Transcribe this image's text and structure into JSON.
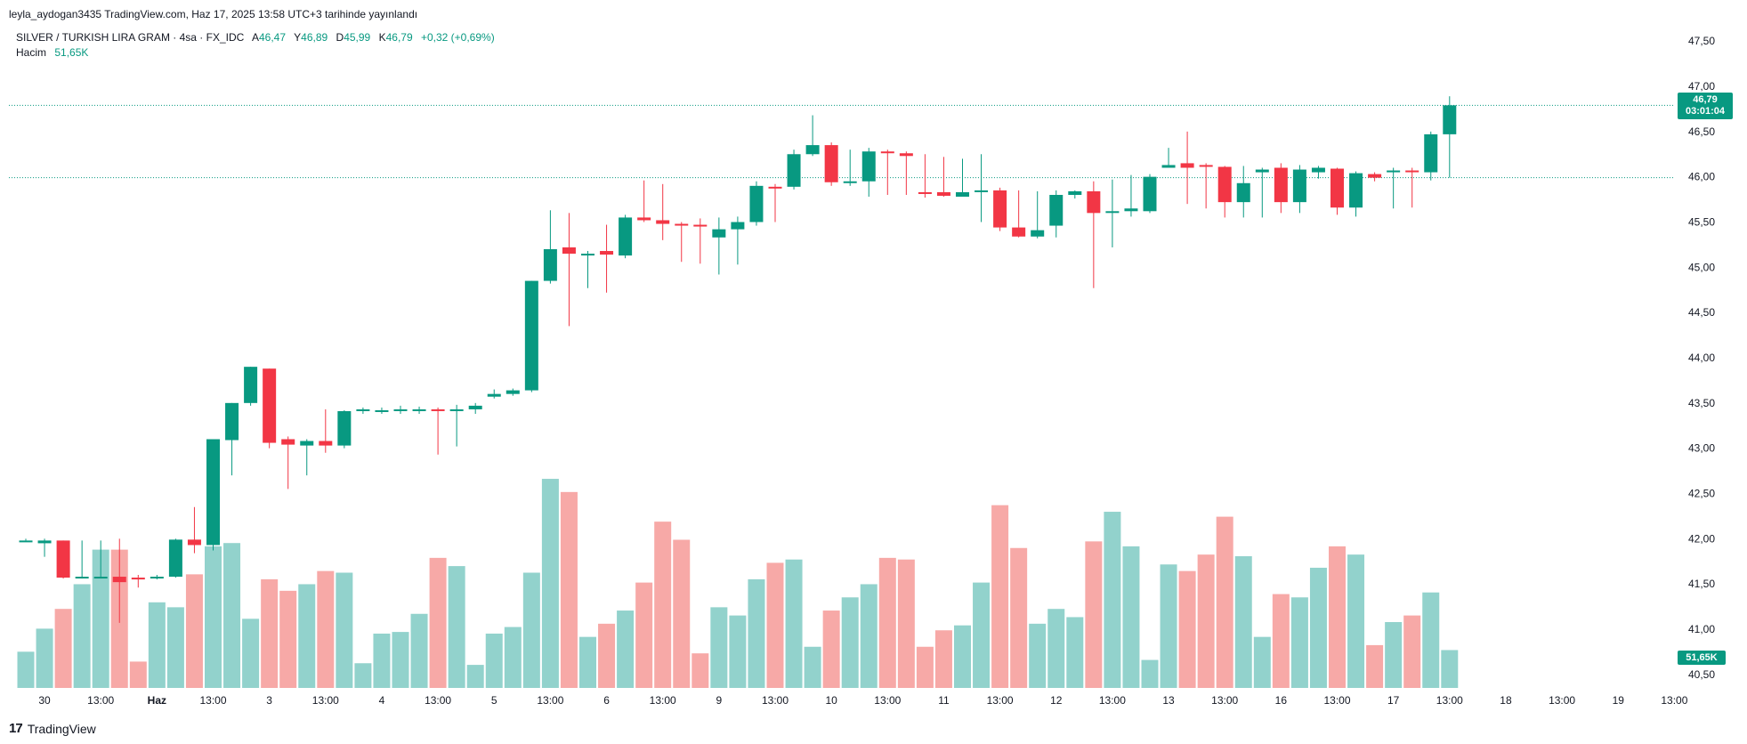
{
  "header": {
    "text": "leyla_aydogan3435 TradingView.com, Haz 17, 2025 13:58 UTC+3 tarihinde yayınlandı"
  },
  "legend": {
    "symbol": "SILVER / TURKISH LIRA GRAM · 4sa · FX_IDC",
    "open_label": "A",
    "open_value": "46,47",
    "high_label": "Y",
    "high_value": "46,89",
    "low_label": "D",
    "low_value": "45,99",
    "close_label": "K",
    "close_value": "46,79",
    "change": "+0,32 (+0,69%)",
    "volume_label": "Hacim",
    "volume_value": "51,65K"
  },
  "price_badge": {
    "price": "46,79",
    "countdown": "03:01:04"
  },
  "volume_badge": "51,65K",
  "footer": {
    "logo": "17",
    "brand": "TradingView"
  },
  "colors": {
    "up": "#089981",
    "down": "#F23645",
    "vol_up": "#92D2CC",
    "vol_down": "#F7A9A7"
  },
  "chart_data": {
    "type": "candlestick",
    "title": "SILVER / TURKISH LIRA GRAM · 4sa · FX_IDC",
    "y_axis": {
      "side": "right",
      "ylim": [
        40.4,
        47.6
      ],
      "ticks": [
        [
          "47,50",
          47.5
        ],
        [
          "47,00",
          47.0
        ],
        [
          "46,50",
          46.5
        ],
        [
          "46,00",
          46.0
        ],
        [
          "45,50",
          45.5
        ],
        [
          "45,00",
          45.0
        ],
        [
          "44,50",
          44.5
        ],
        [
          "44,00",
          44.0
        ],
        [
          "43,50",
          43.5
        ],
        [
          "43,00",
          43.0
        ],
        [
          "42,50",
          42.5
        ],
        [
          "42,00",
          42.0
        ],
        [
          "41,50",
          41.5
        ],
        [
          "41,00",
          41.0
        ],
        [
          "40,50",
          40.5
        ]
      ]
    },
    "x_ticks": [
      {
        "label": "30",
        "i": 1,
        "bold": false
      },
      {
        "label": "13:00",
        "i": 4,
        "bold": false
      },
      {
        "label": "Haz",
        "i": 7,
        "bold": true
      },
      {
        "label": "13:00",
        "i": 10,
        "bold": false
      },
      {
        "label": "3",
        "i": 13,
        "bold": false
      },
      {
        "label": "13:00",
        "i": 16,
        "bold": false
      },
      {
        "label": "4",
        "i": 19,
        "bold": false
      },
      {
        "label": "13:00",
        "i": 22,
        "bold": false
      },
      {
        "label": "5",
        "i": 25,
        "bold": false
      },
      {
        "label": "13:00",
        "i": 28,
        "bold": false
      },
      {
        "label": "6",
        "i": 31,
        "bold": false
      },
      {
        "label": "13:00",
        "i": 34,
        "bold": false
      },
      {
        "label": "9",
        "i": 37,
        "bold": false
      },
      {
        "label": "13:00",
        "i": 40,
        "bold": false
      },
      {
        "label": "10",
        "i": 43,
        "bold": false
      },
      {
        "label": "13:00",
        "i": 46,
        "bold": false
      },
      {
        "label": "11",
        "i": 49,
        "bold": false
      },
      {
        "label": "13:00",
        "i": 52,
        "bold": false
      },
      {
        "label": "12",
        "i": 55,
        "bold": false
      },
      {
        "label": "13:00",
        "i": 58,
        "bold": false
      },
      {
        "label": "13",
        "i": 61,
        "bold": false
      },
      {
        "label": "13:00",
        "i": 64,
        "bold": false
      },
      {
        "label": "16",
        "i": 67,
        "bold": false
      },
      {
        "label": "13:00",
        "i": 70,
        "bold": false
      },
      {
        "label": "17",
        "i": 73,
        "bold": false
      },
      {
        "label": "13:00",
        "i": 76,
        "bold": false
      },
      {
        "label": "18",
        "i": 79,
        "bold": false
      },
      {
        "label": "13:00",
        "i": 82,
        "bold": false
      },
      {
        "label": "19",
        "i": 85,
        "bold": false
      },
      {
        "label": "13:00",
        "i": 88,
        "bold": false
      }
    ],
    "reference_lines": [
      46.79,
      45.99
    ],
    "volume_max": 100,
    "candles": [
      {
        "o": 41.98,
        "h": 42.0,
        "l": 41.98,
        "c": 41.98,
        "v": 22
      },
      {
        "o": 41.95,
        "h": 42.0,
        "l": 41.8,
        "c": 41.98,
        "v": 36
      },
      {
        "o": 41.98,
        "h": 41.98,
        "l": 41.56,
        "c": 41.57,
        "v": 48
      },
      {
        "o": 41.57,
        "h": 41.98,
        "l": 41.56,
        "c": 41.58,
        "v": 63
      },
      {
        "o": 41.57,
        "h": 41.98,
        "l": 41.56,
        "c": 41.58,
        "v": 84
      },
      {
        "o": 41.58,
        "h": 42.0,
        "l": 41.07,
        "c": 41.52,
        "v": 84
      },
      {
        "o": 41.57,
        "h": 41.6,
        "l": 41.46,
        "c": 41.55,
        "v": 16
      },
      {
        "o": 41.57,
        "h": 41.6,
        "l": 41.55,
        "c": 41.58,
        "v": 52
      },
      {
        "o": 41.58,
        "h": 42.0,
        "l": 41.57,
        "c": 41.99,
        "v": 49
      },
      {
        "o": 41.99,
        "h": 42.35,
        "l": 41.84,
        "c": 41.93,
        "v": 69
      },
      {
        "o": 41.93,
        "h": 43.1,
        "l": 41.87,
        "c": 43.1,
        "v": 86
      },
      {
        "o": 43.09,
        "h": 43.5,
        "l": 42.7,
        "c": 43.5,
        "v": 88
      },
      {
        "o": 43.5,
        "h": 43.9,
        "l": 43.47,
        "c": 43.9,
        "v": 42
      },
      {
        "o": 43.88,
        "h": 43.88,
        "l": 43.0,
        "c": 43.06,
        "v": 66
      },
      {
        "o": 43.1,
        "h": 43.13,
        "l": 42.55,
        "c": 43.04,
        "v": 59
      },
      {
        "o": 43.03,
        "h": 43.1,
        "l": 42.7,
        "c": 43.08,
        "v": 63
      },
      {
        "o": 43.08,
        "h": 43.43,
        "l": 42.95,
        "c": 43.03,
        "v": 71
      },
      {
        "o": 43.03,
        "h": 43.42,
        "l": 43.0,
        "c": 43.41,
        "v": 70
      },
      {
        "o": 43.41,
        "h": 43.45,
        "l": 43.38,
        "c": 43.43,
        "v": 15
      },
      {
        "o": 43.42,
        "h": 43.45,
        "l": 43.38,
        "c": 43.42,
        "v": 33
      },
      {
        "o": 43.42,
        "h": 43.47,
        "l": 43.38,
        "c": 43.43,
        "v": 34
      },
      {
        "o": 43.42,
        "h": 43.46,
        "l": 43.38,
        "c": 43.43,
        "v": 45
      },
      {
        "o": 43.43,
        "h": 43.45,
        "l": 42.93,
        "c": 43.42,
        "v": 79
      },
      {
        "o": 43.42,
        "h": 43.48,
        "l": 43.02,
        "c": 43.43,
        "v": 74
      },
      {
        "o": 43.43,
        "h": 43.5,
        "l": 43.38,
        "c": 43.47,
        "v": 14
      },
      {
        "o": 43.57,
        "h": 43.65,
        "l": 43.55,
        "c": 43.6,
        "v": 33
      },
      {
        "o": 43.6,
        "h": 43.66,
        "l": 43.58,
        "c": 43.64,
        "v": 37
      },
      {
        "o": 43.64,
        "h": 44.85,
        "l": 43.62,
        "c": 44.85,
        "v": 70
      },
      {
        "o": 44.85,
        "h": 45.63,
        "l": 44.82,
        "c": 45.2,
        "v": 127
      },
      {
        "o": 45.22,
        "h": 45.6,
        "l": 44.35,
        "c": 45.15,
        "v": 119
      },
      {
        "o": 45.15,
        "h": 45.18,
        "l": 44.77,
        "c": 45.15,
        "v": 31
      },
      {
        "o": 45.18,
        "h": 45.47,
        "l": 44.72,
        "c": 45.14,
        "v": 39
      },
      {
        "o": 45.13,
        "h": 45.58,
        "l": 45.1,
        "c": 45.55,
        "v": 47
      },
      {
        "o": 45.55,
        "h": 45.96,
        "l": 45.5,
        "c": 45.52,
        "v": 64
      },
      {
        "o": 45.52,
        "h": 45.92,
        "l": 45.3,
        "c": 45.48,
        "v": 101
      },
      {
        "o": 45.48,
        "h": 45.5,
        "l": 45.06,
        "c": 45.47,
        "v": 90
      },
      {
        "o": 45.47,
        "h": 45.54,
        "l": 45.04,
        "c": 45.46,
        "v": 21
      },
      {
        "o": 45.33,
        "h": 45.55,
        "l": 44.92,
        "c": 45.42,
        "v": 49
      },
      {
        "o": 45.42,
        "h": 45.56,
        "l": 45.03,
        "c": 45.5,
        "v": 44
      },
      {
        "o": 45.5,
        "h": 45.95,
        "l": 45.46,
        "c": 45.9,
        "v": 66
      },
      {
        "o": 45.89,
        "h": 45.92,
        "l": 45.5,
        "c": 45.88,
        "v": 76
      },
      {
        "o": 45.89,
        "h": 46.3,
        "l": 45.86,
        "c": 46.25,
        "v": 78
      },
      {
        "o": 46.25,
        "h": 46.68,
        "l": 46.23,
        "c": 46.35,
        "v": 25
      },
      {
        "o": 46.35,
        "h": 46.38,
        "l": 45.9,
        "c": 45.94,
        "v": 47
      },
      {
        "o": 45.94,
        "h": 46.3,
        "l": 45.9,
        "c": 45.95,
        "v": 55
      },
      {
        "o": 45.95,
        "h": 46.32,
        "l": 45.78,
        "c": 46.28,
        "v": 63
      },
      {
        "o": 46.28,
        "h": 46.3,
        "l": 45.8,
        "c": 46.27,
        "v": 79
      },
      {
        "o": 46.26,
        "h": 46.28,
        "l": 45.8,
        "c": 46.23,
        "v": 78
      },
      {
        "o": 45.83,
        "h": 46.25,
        "l": 45.77,
        "c": 45.81,
        "v": 25
      },
      {
        "o": 45.83,
        "h": 46.22,
        "l": 45.78,
        "c": 45.79,
        "v": 35
      },
      {
        "o": 45.78,
        "h": 46.2,
        "l": 45.78,
        "c": 45.83,
        "v": 38
      },
      {
        "o": 45.84,
        "h": 46.25,
        "l": 45.5,
        "c": 45.85,
        "v": 64
      },
      {
        "o": 45.85,
        "h": 45.88,
        "l": 45.4,
        "c": 45.44,
        "v": 111
      },
      {
        "o": 45.44,
        "h": 45.85,
        "l": 45.33,
        "c": 45.34,
        "v": 85
      },
      {
        "o": 45.34,
        "h": 45.84,
        "l": 45.32,
        "c": 45.41,
        "v": 39
      },
      {
        "o": 45.46,
        "h": 45.85,
        "l": 45.33,
        "c": 45.8,
        "v": 48
      },
      {
        "o": 45.8,
        "h": 45.85,
        "l": 45.76,
        "c": 45.84,
        "v": 43
      },
      {
        "o": 45.84,
        "h": 45.95,
        "l": 44.77,
        "c": 45.6,
        "v": 89
      },
      {
        "o": 45.61,
        "h": 45.97,
        "l": 45.22,
        "c": 45.62,
        "v": 107
      },
      {
        "o": 45.62,
        "h": 46.02,
        "l": 45.56,
        "c": 45.65,
        "v": 86
      },
      {
        "o": 45.62,
        "h": 46.03,
        "l": 45.6,
        "c": 46.0,
        "v": 17
      },
      {
        "o": 46.1,
        "h": 46.32,
        "l": 46.1,
        "c": 46.13,
        "v": 75
      },
      {
        "o": 46.15,
        "h": 46.5,
        "l": 45.7,
        "c": 46.1,
        "v": 71
      },
      {
        "o": 46.13,
        "h": 46.15,
        "l": 45.65,
        "c": 46.12,
        "v": 81
      },
      {
        "o": 46.11,
        "h": 46.12,
        "l": 45.55,
        "c": 45.72,
        "v": 104
      },
      {
        "o": 45.72,
        "h": 46.12,
        "l": 45.55,
        "c": 45.93,
        "v": 80
      },
      {
        "o": 46.05,
        "h": 46.1,
        "l": 45.55,
        "c": 46.08,
        "v": 31
      },
      {
        "o": 46.1,
        "h": 46.15,
        "l": 45.6,
        "c": 45.72,
        "v": 57
      },
      {
        "o": 45.72,
        "h": 46.13,
        "l": 45.6,
        "c": 46.08,
        "v": 55
      },
      {
        "o": 46.05,
        "h": 46.12,
        "l": 45.98,
        "c": 46.1,
        "v": 73
      },
      {
        "o": 46.09,
        "h": 46.1,
        "l": 45.58,
        "c": 45.66,
        "v": 86
      },
      {
        "o": 45.66,
        "h": 46.06,
        "l": 45.56,
        "c": 46.04,
        "v": 81
      },
      {
        "o": 46.03,
        "h": 46.05,
        "l": 45.95,
        "c": 45.99,
        "v": 26
      },
      {
        "o": 46.05,
        "h": 46.1,
        "l": 45.65,
        "c": 46.07,
        "v": 40
      },
      {
        "o": 46.07,
        "h": 46.1,
        "l": 45.66,
        "c": 46.06,
        "v": 44
      },
      {
        "o": 46.05,
        "h": 46.5,
        "l": 45.96,
        "c": 46.47,
        "v": 58
      },
      {
        "o": 46.47,
        "h": 46.89,
        "l": 45.99,
        "c": 46.79,
        "v": 23
      }
    ]
  }
}
